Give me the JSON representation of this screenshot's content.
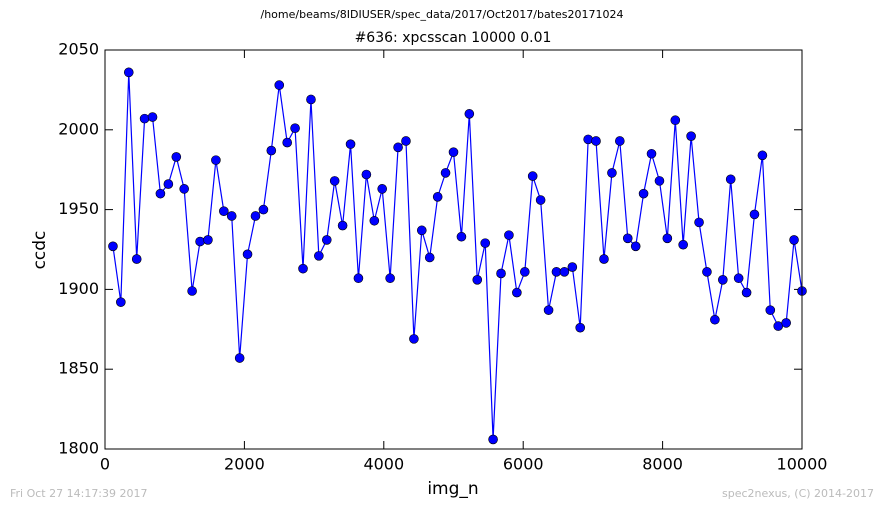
{
  "chart_data": {
    "type": "line",
    "suptitle": "/home/beams/8IDIUSER/spec_data/2017/Oct2017/bates20171024",
    "title": "#636: xpcsscan 10000 0.01",
    "xlabel": "img_n",
    "ylabel": "ccdc",
    "footer_left": "Fri Oct 27 14:17:39 2017",
    "footer_right": "spec2nexus, (C) 2014-2017",
    "color": "#0000ff",
    "xlim": [
      0,
      10000
    ],
    "xticks": [
      0,
      2000,
      4000,
      6000,
      8000,
      10000
    ],
    "ylim": [
      1800,
      2050
    ],
    "yticks": [
      1800,
      1850,
      1900,
      1950,
      2000,
      2050
    ],
    "x": [
      114,
      227,
      341,
      455,
      568,
      682,
      795,
      909,
      1023,
      1136,
      1250,
      1364,
      1477,
      1591,
      1705,
      1818,
      1932,
      2045,
      2159,
      2273,
      2386,
      2500,
      2614,
      2727,
      2841,
      2955,
      3068,
      3182,
      3295,
      3409,
      3523,
      3636,
      3750,
      3864,
      3977,
      4091,
      4205,
      4318,
      4432,
      4545,
      4659,
      4773,
      4886,
      5000,
      5114,
      5227,
      5341,
      5455,
      5568,
      5682,
      5795,
      5909,
      6023,
      6136,
      6250,
      6364,
      6477,
      6591,
      6705,
      6818,
      6932,
      7045,
      7159,
      7273,
      7386,
      7500,
      7614,
      7727,
      7841,
      7955,
      8068,
      8182,
      8295,
      8409,
      8523,
      8636,
      8750,
      8864,
      8977,
      9091,
      9205,
      9318,
      9432,
      9545,
      9659,
      9773,
      9886,
      10000
    ],
    "values": [
      1927,
      1892,
      2036,
      1919,
      2007,
      2008,
      1960,
      1966,
      1983,
      1963,
      1899,
      1930,
      1931,
      1981,
      1949,
      1946,
      1857,
      1922,
      1946,
      1950,
      1987,
      2028,
      1992,
      2001,
      1913,
      2019,
      1921,
      1931,
      1968,
      1940,
      1991,
      1907,
      1972,
      1943,
      1963,
      1907,
      1989,
      1993,
      1869,
      1937,
      1920,
      1958,
      1973,
      1986,
      1933,
      2010,
      1906,
      1929,
      1806,
      1910,
      1934,
      1898,
      1911,
      1971,
      1956,
      1887,
      1911,
      1911,
      1914,
      1876,
      1994,
      1993,
      1919,
      1973,
      1993,
      1932,
      1927,
      1960,
      1985,
      1968,
      1932,
      2006,
      1928,
      1996,
      1942,
      1911,
      1881,
      1906,
      1969,
      1907,
      1898,
      1947,
      1984,
      1887,
      1877,
      1879,
      1931,
      1899
    ]
  }
}
